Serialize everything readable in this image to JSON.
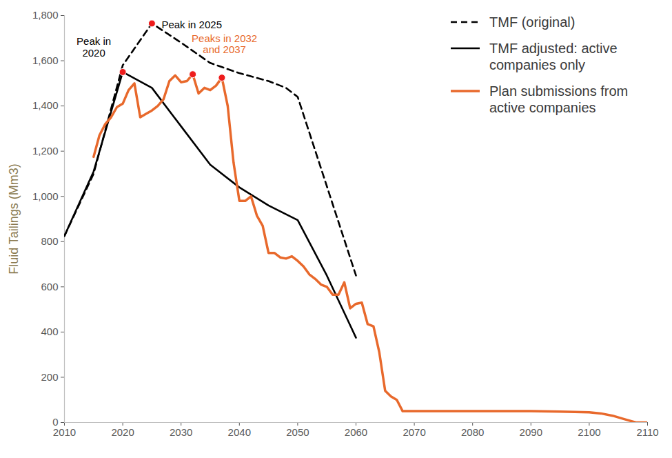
{
  "chart_data": {
    "type": "line",
    "y_label": "Fluid Tailings (Mm3)",
    "xlim": [
      2010,
      2110
    ],
    "xticks": [
      2010,
      2020,
      2030,
      2040,
      2050,
      2060,
      2070,
      2080,
      2090,
      2100,
      2110
    ],
    "ylim": [
      0,
      1800
    ],
    "yticks": [
      0,
      200,
      400,
      600,
      800,
      {
        "value": 1000,
        "label": "1,000"
      },
      {
        "value": 1200,
        "label": "1,200"
      },
      {
        "value": 1400,
        "label": "1,400"
      },
      {
        "value": 1600,
        "label": "1,600"
      },
      {
        "value": 1800,
        "label": "1,800"
      }
    ],
    "grid": false,
    "legend": "top-right",
    "series": [
      {
        "name": "TMF (original)",
        "color": "#000000",
        "line_style": "dashed",
        "x": [
          2010,
          2015,
          2020,
          2025,
          2030,
          2035,
          2040,
          2045,
          2048,
          2050,
          2060
        ],
        "values": [
          825,
          1100,
          1580,
          1765,
          1680,
          1590,
          1545,
          1510,
          1480,
          1440,
          650
        ]
      },
      {
        "name": "TMF adjusted: active companies only",
        "color": "#000000",
        "line_style": "solid",
        "x": [
          2010,
          2015,
          2020,
          2025,
          2030,
          2035,
          2040,
          2045,
          2050,
          2055,
          2060
        ],
        "values": [
          825,
          1110,
          1550,
          1480,
          1310,
          1140,
          1040,
          960,
          895,
          650,
          375
        ]
      },
      {
        "name": "Plan submissions from active companies",
        "color": "#e8692c",
        "line_style": "solid",
        "x": [
          2015,
          2016,
          2017,
          2018,
          2019,
          2020,
          2021,
          2022,
          2023,
          2024,
          2025,
          2026,
          2027,
          2028,
          2029,
          2030,
          2031,
          2032,
          2033,
          2034,
          2035,
          2036,
          2037,
          2038,
          2039,
          2040,
          2041,
          2042,
          2043,
          2044,
          2045,
          2046,
          2047,
          2048,
          2049,
          2050,
          2051,
          2052,
          2053,
          2054,
          2055,
          2056,
          2057,
          2058,
          2059,
          2060,
          2061,
          2062,
          2063,
          2064,
          2065,
          2066,
          2067,
          2068,
          2070,
          2075,
          2080,
          2085,
          2090,
          2095,
          2100,
          2102,
          2104,
          2106,
          2108,
          2110
        ],
        "values": [
          1175,
          1270,
          1320,
          1350,
          1395,
          1410,
          1470,
          1500,
          1350,
          1365,
          1380,
          1400,
          1430,
          1510,
          1535,
          1505,
          1510,
          1540,
          1455,
          1480,
          1470,
          1490,
          1525,
          1400,
          1150,
          980,
          980,
          1000,
          915,
          870,
          750,
          750,
          730,
          725,
          735,
          715,
          690,
          655,
          635,
          610,
          600,
          565,
          565,
          620,
          505,
          525,
          530,
          435,
          425,
          310,
          140,
          115,
          100,
          50,
          50,
          50,
          50,
          50,
          50,
          48,
          45,
          40,
          30,
          15,
          0,
          0
        ]
      }
    ],
    "annotations": [
      {
        "text": "Peak in\n2020",
        "color": "#000000",
        "points": [
          [
            2020,
            1550
          ]
        ]
      },
      {
        "text": "Peak in 2025",
        "color": "#000000",
        "points": [
          [
            2025,
            1765
          ]
        ]
      },
      {
        "text": "Peaks in 2032\nand 2037",
        "color": "#e8692c",
        "points": [
          [
            2032,
            1540
          ],
          [
            2037,
            1525
          ]
        ]
      }
    ]
  }
}
